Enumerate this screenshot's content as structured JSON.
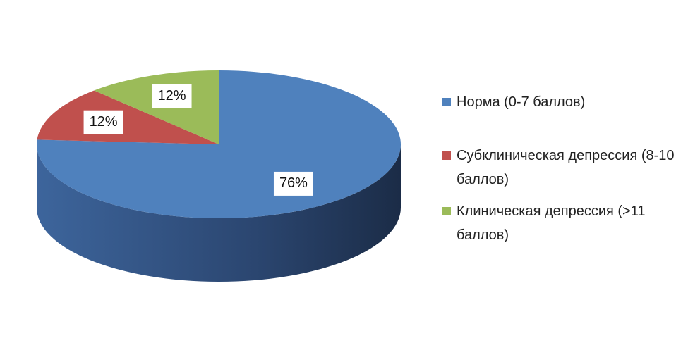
{
  "chart_data": {
    "type": "pie",
    "categories": [
      "Норма (0-7 баллов)",
      "Субклиническая депрессия (8-10 баллов)",
      "Клиническая депрессия (>11 баллов)"
    ],
    "values": [
      76,
      12,
      12
    ],
    "value_labels": [
      "76%",
      "12%",
      "12%"
    ],
    "colors": [
      "#4f81bd",
      "#c0504d",
      "#9bbb59"
    ],
    "legend": "right"
  }
}
